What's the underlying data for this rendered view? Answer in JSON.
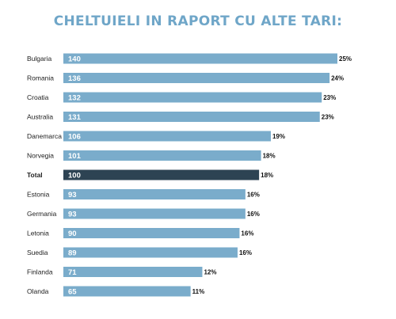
{
  "chart_data": {
    "type": "bar",
    "orientation": "horizontal",
    "title": "CHELTUIELI IN RAPORT CU ALTE TARI:",
    "categories": [
      "Bulgaria",
      "Romania",
      "Croatia",
      "Australia",
      "Danemarca",
      "Norvegia",
      "Total",
      "Estonia",
      "Germania",
      "Letonia",
      "Suedia",
      "Finlanda",
      "Olanda"
    ],
    "values": [
      140,
      136,
      132,
      131,
      106,
      101,
      100,
      93,
      93,
      90,
      89,
      71,
      65
    ],
    "percent_labels": [
      "25%",
      "24%",
      "23%",
      "23%",
      "19%",
      "18%",
      "18%",
      "16%",
      "16%",
      "16%",
      "16%",
      "12%",
      "11%"
    ],
    "highlight_category": "Total",
    "xlim": [
      0,
      140
    ],
    "grid": false,
    "legend": "none",
    "colors": {
      "bar": "#7aaccb",
      "highlight_bar": "#2d4353",
      "title": "#6fa6c8"
    }
  }
}
